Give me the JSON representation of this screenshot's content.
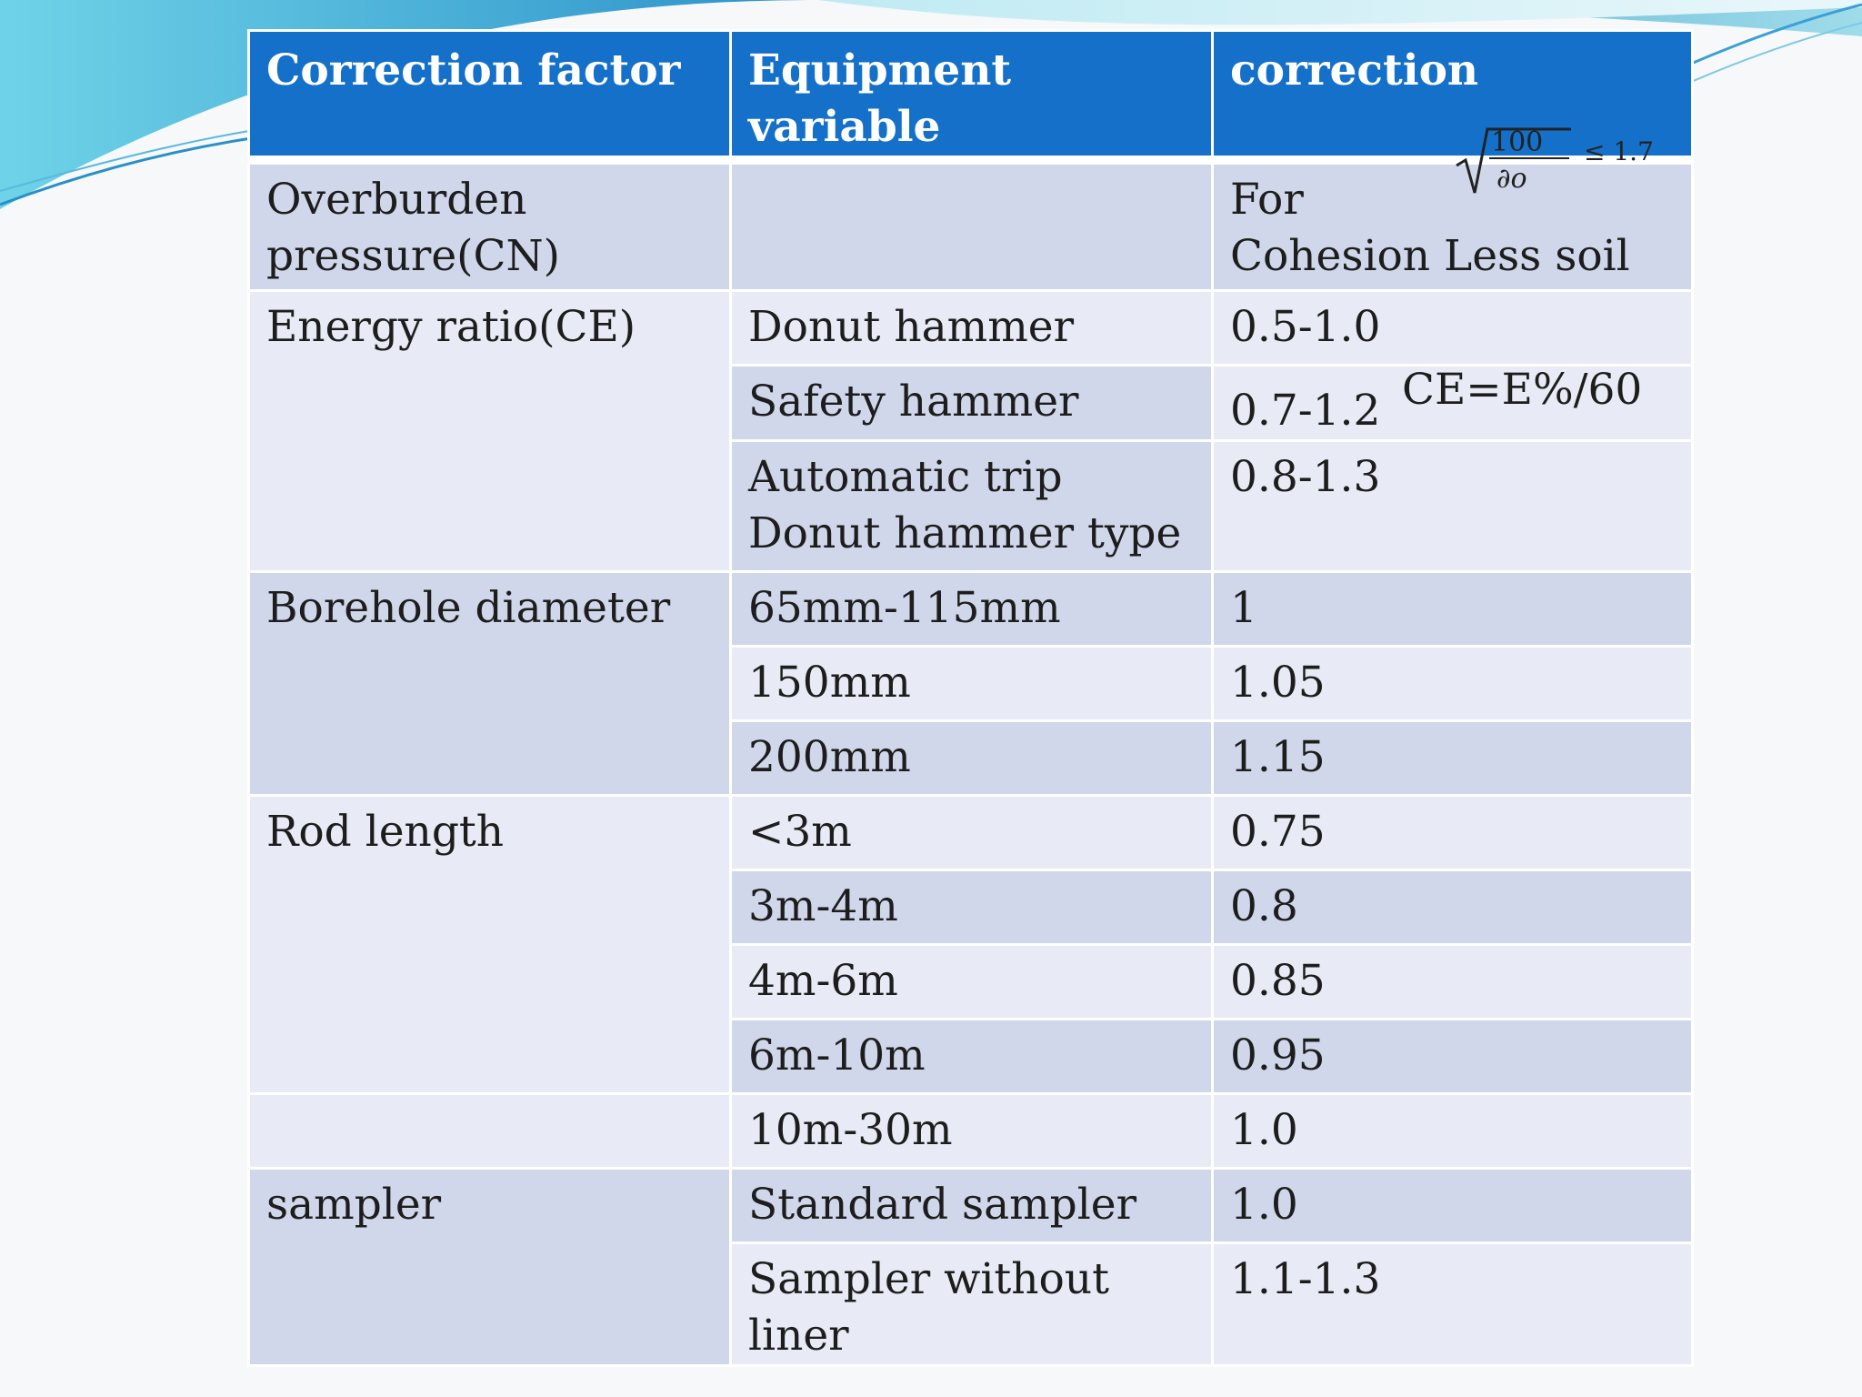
{
  "table": {
    "headers": [
      "Correction factor",
      "Equipment variable",
      "correction"
    ],
    "overburden": {
      "factor": "Overburden pressure(CN)",
      "factor_lines": [
        "Overburden",
        "pressure(CN)"
      ],
      "equipment": "",
      "correction_lines": [
        "For",
        "Cohesion Less soil"
      ],
      "formula": {
        "numerator": "100",
        "denominator": "∂o",
        "relation": "≤ 1.7"
      }
    },
    "energy_ratio": {
      "factor": "Energy ratio(CE)",
      "rows": [
        {
          "equipment_lines": [
            "Donut hammer"
          ],
          "correction": "0.5-1.0"
        },
        {
          "equipment_lines": [
            "Safety hammer"
          ],
          "correction": "0.7-1.2"
        },
        {
          "equipment_lines": [
            "Automatic trip",
            "Donut hammer type"
          ],
          "correction": "0.8-1.3"
        }
      ],
      "note": "CE=E%/60"
    },
    "borehole": {
      "factor": "Borehole diameter",
      "rows": [
        {
          "equipment": "65mm-115mm",
          "correction": "1"
        },
        {
          "equipment": "150mm",
          "correction": "1.05"
        },
        {
          "equipment": "200mm",
          "correction": "1.15"
        }
      ]
    },
    "rod_length": {
      "factor": "Rod length",
      "rows": [
        {
          "equipment": "<3m",
          "correction": "0.75"
        },
        {
          "equipment": "3m-4m",
          "correction": "0.8"
        },
        {
          "equipment": "4m-6m",
          "correction": "0.85"
        },
        {
          "equipment": "6m-10m",
          "correction": "0.95"
        },
        {
          "equipment": "10m-30m",
          "correction": "1.0"
        }
      ]
    },
    "sampler": {
      "factor": "sampler",
      "rows": [
        {
          "equipment": "Standard sampler",
          "correction": "1.0"
        },
        {
          "equipment": "Sampler without liner",
          "correction": "1.1-1.3"
        }
      ]
    }
  },
  "colors": {
    "header_bg": "#1470c9",
    "header_text": "#ffffff",
    "row_dark": "#d0d7ea",
    "row_light": "#e8ebf5",
    "wave_accent": "#4fc3e0"
  }
}
